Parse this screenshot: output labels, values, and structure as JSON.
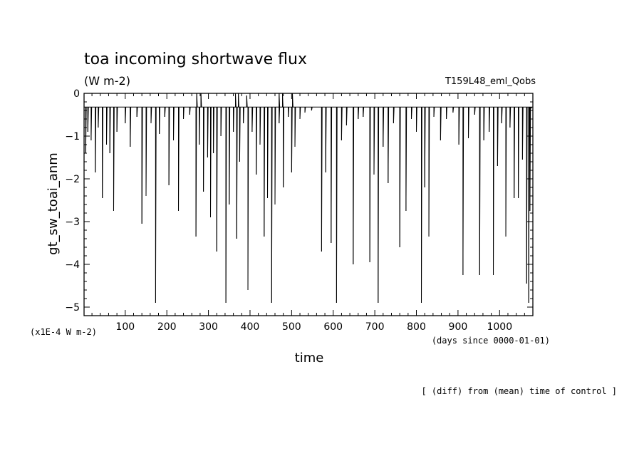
{
  "chart_data": {
    "type": "line",
    "title": "toa incoming shortwave flux",
    "units": "(W m-2)",
    "run_label": "T159L48_eml_Qobs",
    "ylabel": "gt_sw_toai_anm",
    "xlabel": "time",
    "y_scale_note": "(x1E-4 W m-2)",
    "x_units_note": "(days since 0000-01-01)",
    "footnote": "[ (diff) from (mean) time of control ]",
    "xlim": [
      1,
      1080
    ],
    "ylim": [
      -5.2,
      0
    ],
    "x_ticks": [
      100,
      200,
      300,
      400,
      500,
      600,
      700,
      800,
      900,
      1000
    ],
    "y_ticks": [
      0,
      -1,
      -2,
      -3,
      -4,
      -5
    ],
    "baseline": -0.32,
    "series": [
      {
        "spikes": [
          [
            5,
            -1.4
          ],
          [
            10,
            -0.9
          ],
          [
            18,
            -1.1
          ],
          [
            28,
            -1.85
          ],
          [
            35,
            -0.8
          ],
          [
            45,
            -2.45
          ],
          [
            55,
            -1.2
          ],
          [
            63,
            -1.4
          ],
          [
            72,
            -2.75
          ],
          [
            80,
            -0.9
          ],
          [
            100,
            -0.7
          ],
          [
            112,
            -1.25
          ],
          [
            128,
            -0.55
          ],
          [
            140,
            -3.05
          ],
          [
            150,
            -2.4
          ],
          [
            162,
            -0.7
          ],
          [
            173,
            -4.9
          ],
          [
            182,
            -0.95
          ],
          [
            195,
            -0.55
          ],
          [
            205,
            -2.15
          ],
          [
            216,
            -1.1
          ],
          [
            228,
            -2.75
          ],
          [
            240,
            -0.6
          ],
          [
            255,
            -0.5
          ],
          [
            270,
            -3.35
          ],
          [
            278,
            -1.2
          ],
          [
            288,
            -2.3
          ],
          [
            298,
            -1.5
          ],
          [
            305,
            -2.9
          ],
          [
            312,
            -1.4
          ],
          [
            320,
            -3.7
          ],
          [
            330,
            -1.0
          ],
          [
            342,
            -4.9
          ],
          [
            350,
            -2.6
          ],
          [
            360,
            -0.9
          ],
          [
            368,
            -3.4
          ],
          [
            375,
            -1.6
          ],
          [
            384,
            -0.7
          ],
          [
            395,
            -4.6
          ],
          [
            405,
            -0.9
          ],
          [
            415,
            -1.9
          ],
          [
            424,
            -1.2
          ],
          [
            434,
            -3.35
          ],
          [
            442,
            -2.45
          ],
          [
            452,
            -4.9
          ],
          [
            460,
            -2.6
          ],
          [
            470,
            -0.7
          ],
          [
            480,
            -2.2
          ],
          [
            492,
            -0.55
          ],
          [
            500,
            -1.85
          ],
          [
            508,
            -1.25
          ],
          [
            520,
            -0.6
          ],
          [
            532,
            -0.45
          ],
          [
            548,
            -0.4
          ],
          [
            572,
            -3.7
          ],
          [
            582,
            -1.85
          ],
          [
            595,
            -3.5
          ],
          [
            608,
            -4.9
          ],
          [
            620,
            -1.1
          ],
          [
            632,
            -0.75
          ],
          [
            648,
            -4.0
          ],
          [
            660,
            -0.6
          ],
          [
            672,
            -0.55
          ],
          [
            688,
            -3.95
          ],
          [
            698,
            -1.9
          ],
          [
            708,
            -4.9
          ],
          [
            720,
            -1.25
          ],
          [
            732,
            -2.1
          ],
          [
            745,
            -0.7
          ],
          [
            760,
            -3.6
          ],
          [
            775,
            -2.75
          ],
          [
            788,
            -0.6
          ],
          [
            800,
            -0.9
          ],
          [
            812,
            -4.9
          ],
          [
            820,
            -2.2
          ],
          [
            830,
            -3.35
          ],
          [
            842,
            -0.55
          ],
          [
            858,
            -1.1
          ],
          [
            872,
            -0.6
          ],
          [
            888,
            -0.45
          ],
          [
            902,
            -1.2
          ],
          [
            912,
            -4.25
          ],
          [
            925,
            -1.05
          ],
          [
            940,
            -0.5
          ],
          [
            952,
            -4.25
          ],
          [
            962,
            -1.1
          ],
          [
            975,
            -0.9
          ],
          [
            985,
            -4.25
          ],
          [
            995,
            -1.7
          ],
          [
            1005,
            -0.7
          ],
          [
            1015,
            -3.35
          ],
          [
            1025,
            -0.8
          ],
          [
            1035,
            -2.45
          ],
          [
            1045,
            -2.45
          ],
          [
            1055,
            -1.55
          ],
          [
            1065,
            -4.45
          ],
          [
            1070,
            -4.9
          ],
          [
            1073,
            -2.75
          ],
          [
            1076,
            -0.35
          ]
        ],
        "upticks": [
          [
            272,
            0
          ],
          [
            282,
            0
          ],
          [
            365,
            0
          ],
          [
            372,
            0
          ],
          [
            392,
            -0.05
          ],
          [
            470,
            0
          ],
          [
            478,
            0
          ],
          [
            502,
            0
          ]
        ]
      }
    ]
  }
}
